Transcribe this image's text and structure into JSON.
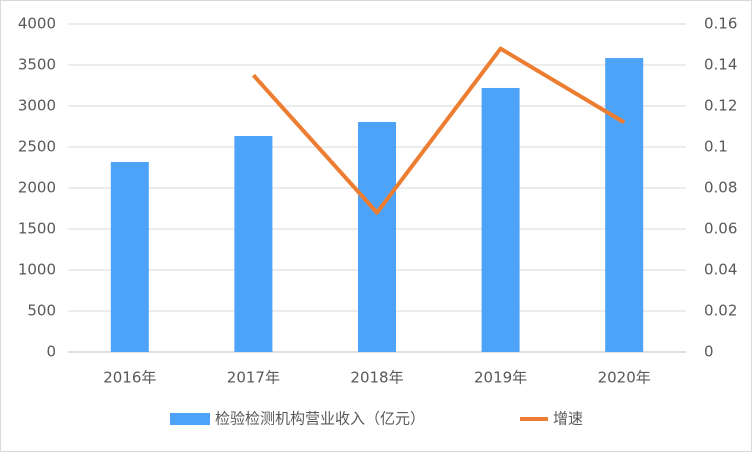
{
  "chart_data": {
    "type": "bar",
    "categories": [
      "2016年",
      "2017年",
      "2018年",
      "2019年",
      "2020年"
    ],
    "series": [
      {
        "name": "检验检测机构营业收入（亿元）",
        "type": "bar",
        "color": "#4da3f7",
        "values": [
          2317,
          2634,
          2805,
          3220,
          3585
        ]
      },
      {
        "name": "增速",
        "type": "line",
        "axis": "y2",
        "color": "#ed7d31",
        "values": [
          null,
          0.135,
          0.068,
          0.148,
          0.112
        ]
      }
    ],
    "ylim": [
      0,
      4000
    ],
    "yticks": [
      0,
      500,
      1000,
      1500,
      2000,
      2500,
      3000,
      3500,
      4000
    ],
    "y2lim": [
      0,
      0.16
    ],
    "y2ticks": [
      0,
      0.02,
      0.04,
      0.06,
      0.08,
      0.1,
      0.12,
      0.14,
      0.16
    ],
    "grid": true,
    "legend": "bottom"
  }
}
